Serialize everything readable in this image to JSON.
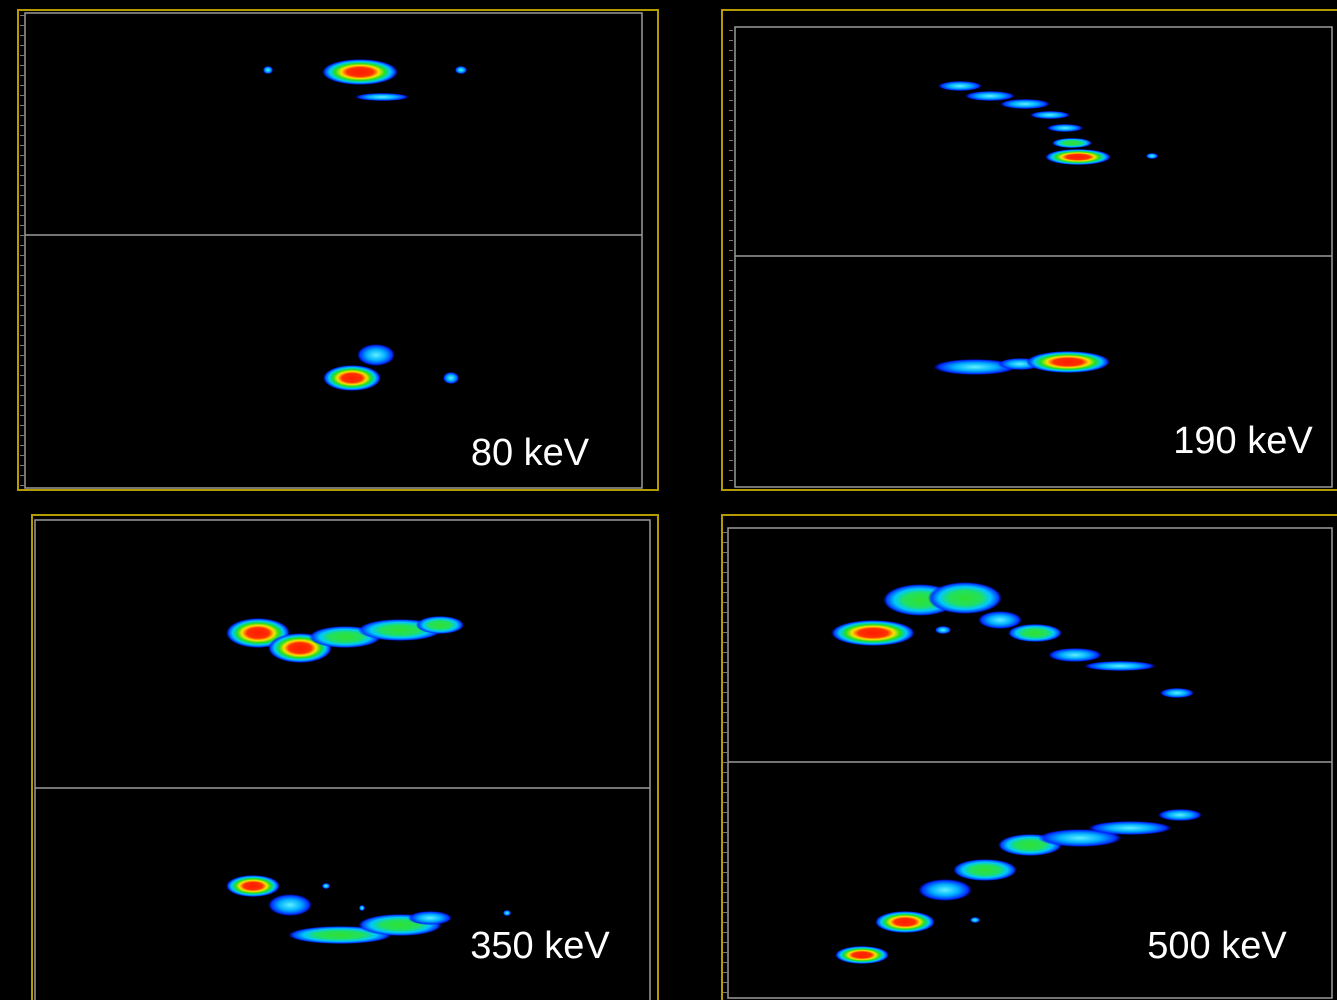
{
  "panels": [
    {
      "label": "80 keV"
    },
    {
      "label": "190 keV"
    },
    {
      "label": "350 keV"
    },
    {
      "label": "500 keV"
    }
  ]
}
